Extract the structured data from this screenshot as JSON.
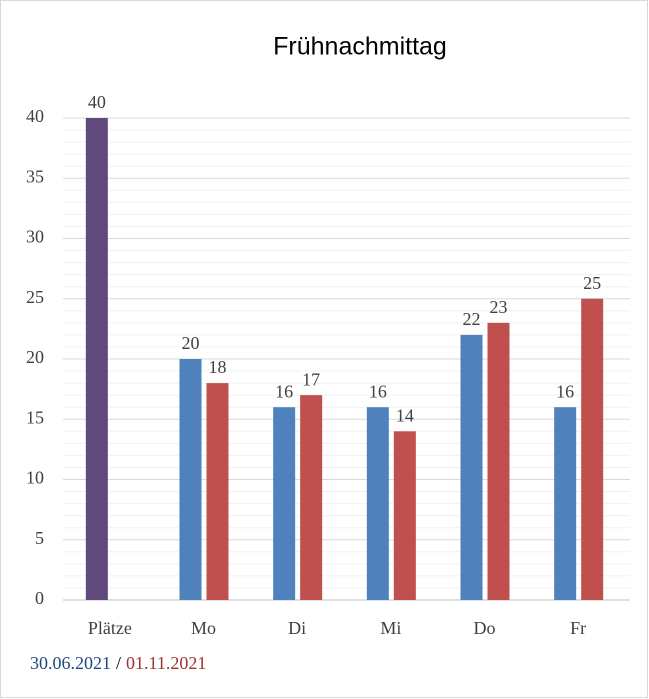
{
  "chart_data": {
    "type": "bar",
    "title": "Frühnachmittag",
    "categories": [
      "Plätze",
      "Mo",
      "Di",
      "Mi",
      "Do",
      "Fr"
    ],
    "series": [
      {
        "name": "30.06.2021",
        "color": "#4f81bd",
        "colors": [
          "#604a7b",
          "#4f81bd",
          "#4f81bd",
          "#4f81bd",
          "#4f81bd",
          "#4f81bd"
        ],
        "values": [
          40,
          20,
          16,
          16,
          22,
          16
        ]
      },
      {
        "name": "01.11.2021",
        "color": "#c0504d",
        "values": [
          null,
          18,
          17,
          14,
          23,
          25
        ]
      }
    ],
    "legend_separator": "/",
    "ylim": [
      0,
      40
    ],
    "yticks": [
      0,
      5,
      10,
      15,
      20,
      25,
      30,
      35,
      40
    ],
    "grid": true,
    "minor_grid": true
  }
}
